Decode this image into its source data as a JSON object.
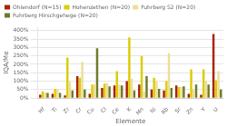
{
  "chart_data": {
    "type": "bar",
    "categories": [
      "Hf",
      "Ti",
      "Zr",
      "Cr",
      "Cu",
      "Cl",
      "Ce",
      "K",
      "Mn",
      "Ni",
      "Rb",
      "Sr",
      "Zn",
      "Y",
      "U"
    ],
    "series": [
      {
        "name": "Ohlendorf (N=15)",
        "color": "#AA2200",
        "values": [
          20,
          25,
          15,
          130,
          25,
          60,
          75,
          100,
          80,
          50,
          45,
          75,
          25,
          20,
          380
        ]
      },
      {
        "name": "Hohenzethen (N=20)",
        "color": "#DDCC00",
        "values": [
          40,
          55,
          240,
          120,
          80,
          85,
          160,
          360,
          250,
          120,
          100,
          65,
          170,
          170,
          105
        ]
      },
      {
        "name": "Fuhrberg S2 (N=20)",
        "color": "#EEDD99",
        "values": [
          35,
          50,
          95,
          215,
          80,
          90,
          80,
          115,
          40,
          100,
          265,
          65,
          50,
          100,
          160
        ]
      },
      {
        "name": "Fuhrberg Hirschgehege (N=20)",
        "color": "#6B7B2A",
        "values": [
          30,
          30,
          45,
          50,
          295,
          70,
          75,
          45,
          130,
          55,
          60,
          70,
          80,
          80,
          50
        ]
      }
    ],
    "xlabel": "Elemente",
    "ylabel": "IQA/Me",
    "ylim": [
      0,
      420
    ],
    "yticks": [
      {
        "value": 0,
        "label": "0%"
      },
      {
        "value": 50,
        "label": "50%"
      },
      {
        "value": 100,
        "label": "100%"
      },
      {
        "value": 150,
        "label": "150%"
      },
      {
        "value": 200,
        "label": "200%"
      },
      {
        "value": 250,
        "label": "250%"
      },
      {
        "value": 300,
        "label": "300%"
      },
      {
        "value": 350,
        "label": "350%"
      },
      {
        "value": 400,
        "label": "400%"
      }
    ],
    "grid": true,
    "legend": "upper left"
  }
}
